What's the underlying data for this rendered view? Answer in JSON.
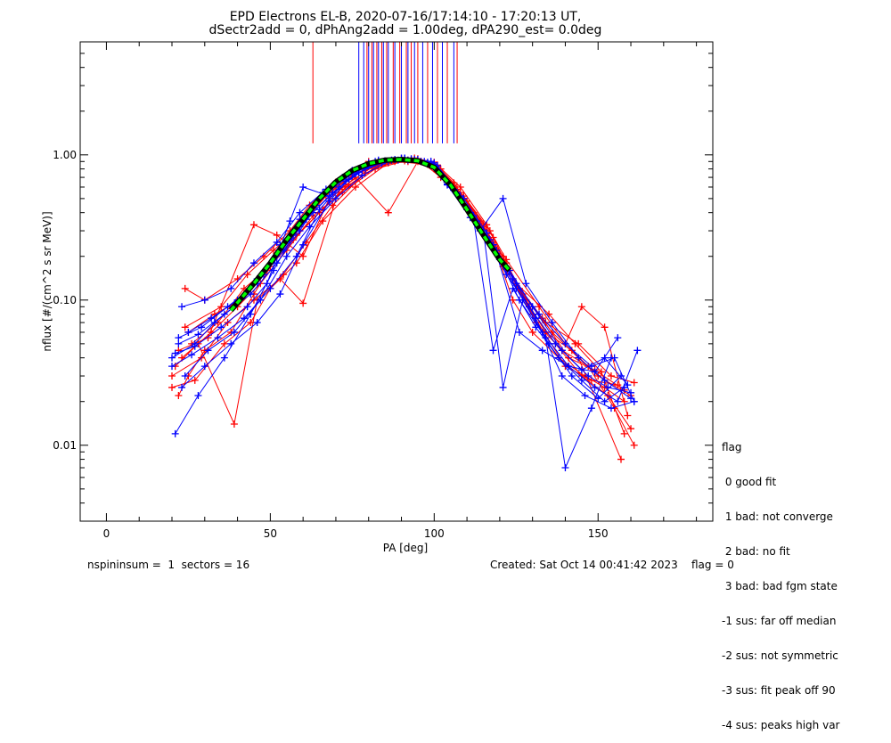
{
  "chart_data": {
    "type": "line",
    "title": "EPD Electrons EL-B, 2020-07-16/17:14:10 - 17:20:13 UT,",
    "subtitle": "dSectr2add = 0, dPhAng2add = 1.00deg, dPA290_est=    0.0deg",
    "xlabel": "PA [deg]",
    "ylabel": "nflux [#/(cm^2 s sr MeV)]",
    "xlim": [
      -8,
      185
    ],
    "ylim": [
      0.003,
      6.0
    ],
    "yscale": "log",
    "xticks": [
      0,
      50,
      100,
      150
    ],
    "xtick_labels": [
      "0",
      "50",
      "100",
      "150"
    ],
    "yticks": [
      0.01,
      0.1,
      1.0
    ],
    "ytick_labels": [
      "0.01",
      "0.10",
      "1.00"
    ],
    "grid": false,
    "colors": {
      "red": "#ff0000",
      "blue": "#0000ff",
      "fit": "#00ff00",
      "fit_outline": "#000000"
    },
    "fit_curve": {
      "name": "fit",
      "x": [
        38,
        45,
        50,
        55,
        60,
        65,
        70,
        75,
        80,
        85,
        90,
        95,
        100,
        105,
        110,
        115,
        120,
        123
      ],
      "y": [
        0.085,
        0.13,
        0.18,
        0.26,
        0.36,
        0.5,
        0.65,
        0.78,
        0.87,
        0.92,
        0.93,
        0.91,
        0.82,
        0.62,
        0.42,
        0.28,
        0.19,
        0.16
      ]
    },
    "peak_markers": {
      "red_x": [
        63,
        79.5,
        81,
        82.5,
        84,
        85.5,
        87.5,
        89.5,
        91.5,
        93,
        95,
        98,
        101,
        104,
        107
      ],
      "blue_x": [
        77,
        78.5,
        80,
        81.5,
        83,
        84.5,
        86,
        88,
        90,
        92,
        94,
        96.5,
        99.5,
        102.5,
        106
      ],
      "y_bottom": 1.2,
      "y_top": 6.0
    },
    "series": [
      {
        "color": "red",
        "x": [
          22,
          25,
          30,
          38,
          45,
          52,
          58,
          64,
          70,
          78,
          84,
          92,
          100,
          105,
          112,
          118,
          124,
          130,
          138,
          146,
          152,
          158
        ],
        "y": [
          0.022,
          0.03,
          0.045,
          0.06,
          0.11,
          0.2,
          0.3,
          0.45,
          0.6,
          0.8,
          0.88,
          0.9,
          0.85,
          0.6,
          0.4,
          0.25,
          0.1,
          0.06,
          0.04,
          0.03,
          0.025,
          0.02
        ]
      },
      {
        "color": "red",
        "x": [
          24,
          30,
          40,
          48,
          56,
          62,
          70,
          80,
          90,
          100,
          108,
          116,
          122,
          128,
          134,
          142,
          150,
          160
        ],
        "y": [
          0.12,
          0.1,
          0.14,
          0.2,
          0.3,
          0.45,
          0.65,
          0.9,
          0.95,
          0.8,
          0.55,
          0.3,
          0.18,
          0.1,
          0.06,
          0.045,
          0.03,
          0.022
        ]
      },
      {
        "color": "red",
        "x": [
          20,
          27,
          36,
          44,
          50,
          58,
          66,
          76,
          86,
          96,
          102,
          110,
          118,
          124,
          130,
          140,
          148,
          156
        ],
        "y": [
          0.025,
          0.028,
          0.05,
          0.07,
          0.12,
          0.18,
          0.35,
          0.6,
          0.88,
          0.9,
          0.7,
          0.45,
          0.25,
          0.14,
          0.08,
          0.035,
          0.028,
          0.026
        ]
      },
      {
        "color": "red",
        "x": [
          23,
          32,
          40,
          47,
          55,
          63,
          72,
          82,
          92,
          100,
          106,
          114,
          120,
          126,
          134,
          144,
          154,
          161
        ],
        "y": [
          0.04,
          0.06,
          0.09,
          0.13,
          0.22,
          0.38,
          0.55,
          0.8,
          0.92,
          0.88,
          0.62,
          0.35,
          0.2,
          0.12,
          0.07,
          0.05,
          0.03,
          0.027
        ]
      },
      {
        "color": "red",
        "x": [
          25,
          33,
          41,
          49,
          57,
          65,
          73,
          83,
          93,
          99,
          107,
          115,
          121,
          129,
          137,
          145,
          153,
          160
        ],
        "y": [
          0.06,
          0.08,
          0.1,
          0.16,
          0.26,
          0.4,
          0.6,
          0.85,
          0.93,
          0.87,
          0.58,
          0.32,
          0.17,
          0.09,
          0.05,
          0.03,
          0.022,
          0.013
        ]
      },
      {
        "color": "red",
        "x": [
          21,
          28,
          39,
          46,
          54,
          61,
          69,
          79,
          88,
          98,
          104,
          112,
          119,
          125,
          133,
          141,
          149,
          158
        ],
        "y": [
          0.035,
          0.05,
          0.014,
          0.1,
          0.15,
          0.25,
          0.45,
          0.75,
          0.9,
          0.86,
          0.66,
          0.38,
          0.22,
          0.13,
          0.075,
          0.04,
          0.033,
          0.024
        ]
      },
      {
        "color": "red",
        "x": [
          26,
          34,
          42,
          50,
          58,
          66,
          74,
          84,
          94,
          100,
          109,
          117,
          123,
          131,
          139,
          147,
          155,
          161
        ],
        "y": [
          0.05,
          0.07,
          0.12,
          0.17,
          0.28,
          0.42,
          0.62,
          0.87,
          0.95,
          0.89,
          0.52,
          0.3,
          0.16,
          0.07,
          0.045,
          0.035,
          0.018,
          0.01
        ]
      },
      {
        "color": "red",
        "x": [
          22,
          31,
          45,
          52,
          60,
          68,
          76,
          86,
          95,
          101,
          108,
          116,
          122,
          132,
          140,
          145,
          152,
          159
        ],
        "y": [
          0.045,
          0.055,
          0.33,
          0.28,
          0.2,
          0.5,
          0.7,
          0.4,
          0.9,
          0.85,
          0.6,
          0.33,
          0.19,
          0.09,
          0.05,
          0.09,
          0.065,
          0.016
        ]
      },
      {
        "color": "red",
        "x": [
          24,
          35,
          43,
          51,
          59,
          67,
          75,
          85,
          95,
          102,
          110,
          118,
          125,
          135,
          143,
          151,
          158
        ],
        "y": [
          0.065,
          0.09,
          0.15,
          0.22,
          0.32,
          0.52,
          0.72,
          0.88,
          0.94,
          0.8,
          0.48,
          0.27,
          0.13,
          0.08,
          0.05,
          0.032,
          0.012
        ]
      },
      {
        "color": "red",
        "x": [
          20,
          29,
          37,
          45,
          53,
          60,
          71,
          81,
          91,
          100,
          106,
          114,
          121,
          127,
          136,
          144,
          157
        ],
        "y": [
          0.03,
          0.04,
          0.07,
          0.1,
          0.14,
          0.095,
          0.58,
          0.82,
          0.91,
          0.88,
          0.64,
          0.34,
          0.2,
          0.11,
          0.06,
          0.04,
          0.008
        ]
      },
      {
        "color": "blue",
        "x": [
          20,
          27,
          33,
          39,
          46,
          53,
          59,
          66,
          74,
          82,
          90,
          98,
          104,
          112,
          119,
          125,
          133,
          141,
          149,
          156,
          162
        ],
        "y": [
          0.04,
          0.05,
          0.07,
          0.09,
          0.14,
          0.24,
          0.36,
          0.55,
          0.75,
          0.9,
          0.95,
          0.88,
          0.65,
          0.38,
          0.22,
          0.12,
          0.06,
          0.035,
          0.025,
          0.02,
          0.045
        ]
      },
      {
        "color": "blue",
        "x": [
          21,
          28,
          36,
          44,
          51,
          57,
          64,
          72,
          80,
          88,
          96,
          100,
          107,
          114,
          121,
          128,
          136,
          144,
          152,
          160
        ],
        "y": [
          0.012,
          0.022,
          0.04,
          0.08,
          0.16,
          0.28,
          0.45,
          0.7,
          0.88,
          0.93,
          0.9,
          0.82,
          0.55,
          0.3,
          0.5,
          0.13,
          0.07,
          0.04,
          0.028,
          0.021
        ]
      },
      {
        "color": "blue",
        "x": [
          23,
          30,
          38,
          45,
          52,
          59,
          67,
          75,
          83,
          91,
          99,
          105,
          111,
          118,
          124,
          132,
          140,
          148,
          155,
          161
        ],
        "y": [
          0.09,
          0.1,
          0.12,
          0.18,
          0.25,
          0.4,
          0.58,
          0.78,
          0.92,
          0.95,
          0.9,
          0.6,
          0.4,
          0.24,
          0.14,
          0.08,
          0.05,
          0.035,
          0.04,
          0.02
        ]
      },
      {
        "color": "blue",
        "x": [
          24,
          31,
          39,
          47,
          55,
          62,
          70,
          78,
          86,
          94,
          100,
          108,
          115,
          121,
          127,
          135,
          142,
          150,
          157
        ],
        "y": [
          0.03,
          0.045,
          0.06,
          0.1,
          0.2,
          0.32,
          0.5,
          0.72,
          0.9,
          0.93,
          0.88,
          0.52,
          0.3,
          0.025,
          0.1,
          0.05,
          0.03,
          0.021,
          0.03
        ]
      },
      {
        "color": "blue",
        "x": [
          22,
          29,
          37,
          46,
          54,
          61,
          69,
          77,
          85,
          93,
          100,
          106,
          113,
          120,
          126,
          134,
          140,
          148,
          154
        ],
        "y": [
          0.055,
          0.065,
          0.09,
          0.13,
          0.22,
          0.36,
          0.55,
          0.76,
          0.91,
          0.94,
          0.86,
          0.57,
          0.33,
          0.19,
          0.1,
          0.055,
          0.007,
          0.018,
          0.04
        ]
      },
      {
        "color": "blue",
        "x": [
          20,
          26,
          34,
          42,
          50,
          58,
          65,
          73,
          81,
          89,
          97,
          103,
          110,
          117,
          123,
          130,
          139,
          147,
          153,
          160
        ],
        "y": [
          0.035,
          0.042,
          0.055,
          0.075,
          0.12,
          0.2,
          0.42,
          0.66,
          0.86,
          0.92,
          0.9,
          0.68,
          0.42,
          0.26,
          0.16,
          0.09,
          0.045,
          0.03,
          0.025,
          0.023
        ]
      },
      {
        "color": "blue",
        "x": [
          25,
          32,
          40,
          48,
          56,
          63,
          71,
          79,
          87,
          95,
          101,
          109,
          116,
          122,
          129,
          137,
          145,
          152,
          159
        ],
        "y": [
          0.06,
          0.075,
          0.1,
          0.15,
          0.26,
          0.4,
          0.6,
          0.8,
          0.92,
          0.93,
          0.84,
          0.5,
          0.29,
          0.15,
          0.09,
          0.05,
          0.033,
          0.04,
          0.026
        ]
      },
      {
        "color": "blue",
        "x": [
          21,
          27,
          35,
          43,
          49,
          56,
          60,
          68,
          76,
          84,
          92,
          100,
          104,
          111,
          118,
          125,
          131,
          139,
          146,
          154,
          161
        ],
        "y": [
          0.043,
          0.048,
          0.065,
          0.09,
          0.13,
          0.35,
          0.6,
          0.52,
          0.74,
          0.88,
          0.92,
          0.85,
          0.62,
          0.37,
          0.24,
          0.13,
          0.075,
          0.03,
          0.022,
          0.018,
          0.02
        ]
      },
      {
        "color": "blue",
        "x": [
          23,
          30,
          38,
          46,
          53,
          60,
          68,
          74,
          82,
          90,
          98,
          105,
          113,
          119,
          126,
          133,
          141,
          149,
          156
        ],
        "y": [
          0.025,
          0.035,
          0.05,
          0.07,
          0.11,
          0.24,
          0.48,
          0.68,
          0.88,
          0.94,
          0.89,
          0.6,
          0.35,
          0.21,
          0.06,
          0.045,
          0.035,
          0.032,
          0.055
        ]
      },
      {
        "color": "blue",
        "x": [
          22,
          28,
          36,
          44,
          52,
          59,
          66,
          75,
          83,
          91,
          99,
          104,
          112,
          118,
          124,
          131,
          138,
          145,
          152,
          158
        ],
        "y": [
          0.05,
          0.058,
          0.08,
          0.11,
          0.18,
          0.3,
          0.52,
          0.74,
          0.9,
          0.95,
          0.9,
          0.63,
          0.36,
          0.045,
          0.12,
          0.065,
          0.04,
          0.028,
          0.02,
          0.025
        ]
      }
    ]
  },
  "legend": {
    "title": "flag",
    "items": [
      " 0 good fit",
      " 1 bad: not converge",
      " 2 bad: no fit",
      " 3 bad: bad fgm state",
      "-1 sus: far off median",
      "-2 sus: not symmetric",
      "-3 sus: fit peak off 90",
      "-4 sus: peaks high var"
    ]
  },
  "footer": {
    "left": "nspininsum =  1  sectors = 16",
    "right": "Created: Sat Oct 14 00:41:42 2023    flag = 0"
  }
}
